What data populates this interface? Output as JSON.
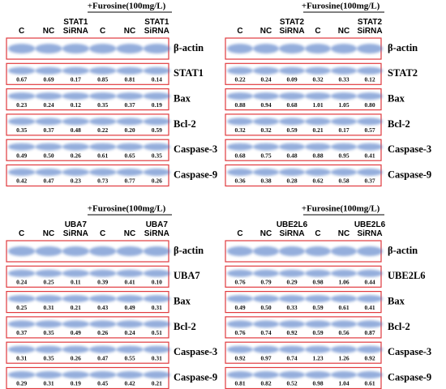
{
  "panels": [
    {
      "treatment": "+Furosine(100mg/L)",
      "lanes": [
        [
          "C"
        ],
        [
          "NC"
        ],
        [
          "STAT1",
          "SiRNA"
        ],
        [
          "C"
        ],
        [
          "NC"
        ],
        [
          "STAT1",
          "SiRNA"
        ]
      ],
      "rows": [
        {
          "name": "β-actin"
        },
        {
          "name": "STAT1",
          "values": [
            "0.67",
            "0.69",
            "0.17",
            "0.85",
            "0.81",
            "0.14"
          ]
        },
        {
          "name": "Bax",
          "values": [
            "0.23",
            "0.24",
            "0.12",
            "0.35",
            "0.37",
            "0.19"
          ]
        },
        {
          "name": "Bcl-2",
          "values": [
            "0.35",
            "0.37",
            "0.48",
            "0.22",
            "0.20",
            "0.59"
          ]
        },
        {
          "name": "Caspase-3",
          "values": [
            "0.49",
            "0.50",
            "0.26",
            "0.61",
            "0.65",
            "0.35"
          ]
        },
        {
          "name": "Caspase-9",
          "values": [
            "0.42",
            "0.47",
            "0.23",
            "0.73",
            "0.77",
            "0.26"
          ]
        }
      ]
    },
    {
      "treatment": "+Furosine(100mg/L)",
      "lanes": [
        [
          "C"
        ],
        [
          "NC"
        ],
        [
          "STAT2",
          "SiRNA"
        ],
        [
          "C"
        ],
        [
          "NC"
        ],
        [
          "STAT2",
          "SiRNA"
        ]
      ],
      "rows": [
        {
          "name": "β-actin"
        },
        {
          "name": "STAT2",
          "values": [
            "0.22",
            "0.24",
            "0.09",
            "0.32",
            "0.33",
            "0.12"
          ]
        },
        {
          "name": "Bax",
          "values": [
            "0.88",
            "0.94",
            "0.68",
            "1.01",
            "1.05",
            "0.80"
          ]
        },
        {
          "name": "Bcl-2",
          "values": [
            "0.32",
            "0.32",
            "0.59",
            "0.21",
            "0.17",
            "0.57"
          ]
        },
        {
          "name": "Caspase-3",
          "values": [
            "0.68",
            "0.75",
            "0.48",
            "0.88",
            "0.95",
            "0.41"
          ]
        },
        {
          "name": "Caspase-9",
          "values": [
            "0.36",
            "0.38",
            "0.28",
            "0.62",
            "0.58",
            "0.37"
          ]
        }
      ]
    },
    {
      "treatment": "+Furosine(100mg/L)",
      "lanes": [
        [
          "C"
        ],
        [
          "NC"
        ],
        [
          "UBA7",
          "SiRNA"
        ],
        [
          "C"
        ],
        [
          "NC"
        ],
        [
          "UBA7",
          "SiRNA"
        ]
      ],
      "rows": [
        {
          "name": "β-actin"
        },
        {
          "name": "UBA7",
          "values": [
            "0.24",
            "0.25",
            "0.11",
            "0.39",
            "0.41",
            "0.10"
          ]
        },
        {
          "name": "Bax",
          "values": [
            "0.25",
            "0.31",
            "0.21",
            "0.43",
            "0.49",
            "0.31"
          ]
        },
        {
          "name": "Bcl-2",
          "values": [
            "0.37",
            "0.35",
            "0.49",
            "0.26",
            "0.24",
            "0.51"
          ]
        },
        {
          "name": "Caspase-3",
          "values": [
            "0.31",
            "0.35",
            "0.26",
            "0.47",
            "0.55",
            "0.31"
          ]
        },
        {
          "name": "Caspase-9",
          "values": [
            "0.29",
            "0.31",
            "0.19",
            "0.45",
            "0.42",
            "0.21"
          ]
        }
      ]
    },
    {
      "treatment": "+Furosine(100mg/L)",
      "lanes": [
        [
          "C"
        ],
        [
          "NC"
        ],
        [
          "UBE2L6",
          "SiRNA"
        ],
        [
          "C"
        ],
        [
          "NC"
        ],
        [
          "UBE2L6",
          "SiRNA"
        ]
      ],
      "rows": [
        {
          "name": "β-actin"
        },
        {
          "name": "UBE2L6",
          "values": [
            "0.76",
            "0.79",
            "0.29",
            "0.98",
            "1.06",
            "0.44"
          ]
        },
        {
          "name": "Bax",
          "values": [
            "0.49",
            "0.50",
            "0.33",
            "0.59",
            "0.61",
            "0.41"
          ]
        },
        {
          "name": "Bcl-2",
          "values": [
            "0.76",
            "0.74",
            "0.92",
            "0.59",
            "0.56",
            "0.87"
          ]
        },
        {
          "name": "Caspase-3",
          "values": [
            "0.92",
            "0.97",
            "0.74",
            "1.23",
            "1.26",
            "0.92"
          ]
        },
        {
          "name": "Caspase-9",
          "values": [
            "0.81",
            "0.82",
            "0.52",
            "0.98",
            "1.04",
            "0.61"
          ]
        }
      ]
    }
  ]
}
